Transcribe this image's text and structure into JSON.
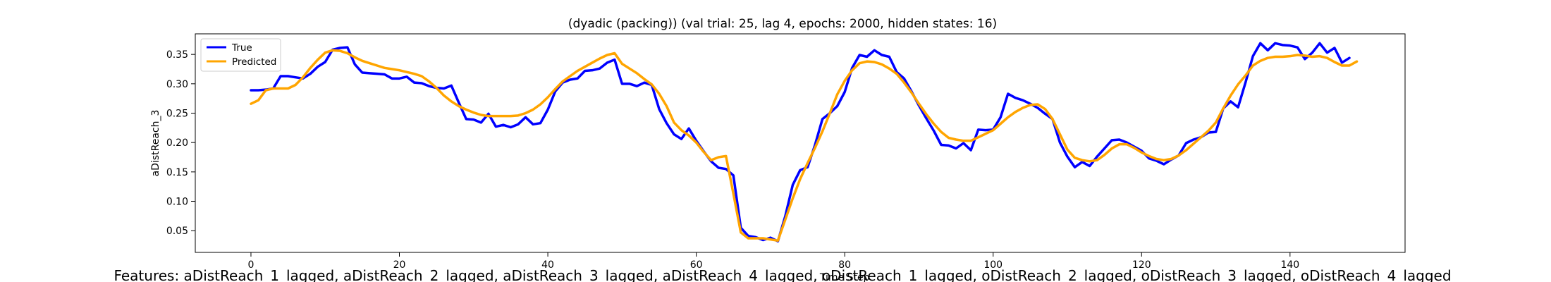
{
  "chart_data": {
    "type": "line",
    "title": "(dyadic (packing)) (val trial: 25, lag 4, epochs: 2000, hidden states: 16)",
    "xlabel": "Time Step",
    "ylabel": "aDistReach_3",
    "xlim": [
      -7.5,
      155.5
    ],
    "ylim": [
      0.013,
      0.385
    ],
    "xticks": [
      0,
      20,
      40,
      60,
      80,
      100,
      120,
      140
    ],
    "yticks": [
      0.05,
      0.1,
      0.15,
      0.2,
      0.25,
      0.3,
      0.35
    ],
    "ytick_labels": [
      "0.05",
      "0.10",
      "0.15",
      "0.20",
      "0.25",
      "0.30",
      "0.35"
    ],
    "grid": false,
    "legend_position": "upper-left",
    "colors": {
      "true": "#0000ff",
      "predicted": "#ffa500"
    },
    "x_start": 0,
    "series": [
      {
        "name": "True",
        "color": "#0000ff",
        "values": [
          0.289,
          0.289,
          0.29,
          0.292,
          0.313,
          0.313,
          0.311,
          0.309,
          0.317,
          0.329,
          0.337,
          0.358,
          0.361,
          0.362,
          0.333,
          0.319,
          0.318,
          0.317,
          0.316,
          0.309,
          0.309,
          0.312,
          0.302,
          0.301,
          0.296,
          0.293,
          0.292,
          0.297,
          0.268,
          0.24,
          0.239,
          0.234,
          0.249,
          0.227,
          0.23,
          0.226,
          0.231,
          0.243,
          0.231,
          0.233,
          0.256,
          0.287,
          0.302,
          0.307,
          0.309,
          0.322,
          0.323,
          0.326,
          0.336,
          0.341,
          0.3,
          0.3,
          0.296,
          0.302,
          0.298,
          0.257,
          0.233,
          0.214,
          0.206,
          0.224,
          0.203,
          0.185,
          0.168,
          0.157,
          0.155,
          0.144,
          0.055,
          0.041,
          0.039,
          0.034,
          0.038,
          0.032,
          0.075,
          0.128,
          0.153,
          0.158,
          0.196,
          0.24,
          0.25,
          0.262,
          0.286,
          0.327,
          0.349,
          0.346,
          0.357,
          0.349,
          0.346,
          0.32,
          0.309,
          0.287,
          0.263,
          0.241,
          0.22,
          0.196,
          0.195,
          0.19,
          0.199,
          0.187,
          0.222,
          0.221,
          0.222,
          0.243,
          0.283,
          0.276,
          0.272,
          0.266,
          0.259,
          0.249,
          0.24,
          0.2,
          0.176,
          0.158,
          0.167,
          0.16,
          0.176,
          0.19,
          0.204,
          0.205,
          0.2,
          0.193,
          0.186,
          0.173,
          0.169,
          0.163,
          0.171,
          0.178,
          0.199,
          0.205,
          0.209,
          0.217,
          0.218,
          0.258,
          0.27,
          0.26,
          0.302,
          0.347,
          0.369,
          0.357,
          0.369,
          0.366,
          0.365,
          0.362,
          0.342,
          0.353,
          0.369,
          0.353,
          0.361,
          0.336,
          0.344
        ]
      },
      {
        "name": "Predicted",
        "color": "#ffa500",
        "values": [
          0.266,
          0.272,
          0.289,
          0.292,
          0.292,
          0.292,
          0.298,
          0.311,
          0.327,
          0.341,
          0.353,
          0.357,
          0.356,
          0.352,
          0.345,
          0.339,
          0.335,
          0.331,
          0.327,
          0.325,
          0.323,
          0.32,
          0.317,
          0.313,
          0.304,
          0.293,
          0.28,
          0.27,
          0.262,
          0.256,
          0.251,
          0.247,
          0.245,
          0.245,
          0.245,
          0.245,
          0.246,
          0.25,
          0.256,
          0.265,
          0.277,
          0.291,
          0.304,
          0.313,
          0.322,
          0.329,
          0.336,
          0.343,
          0.349,
          0.352,
          0.334,
          0.326,
          0.318,
          0.308,
          0.299,
          0.283,
          0.262,
          0.234,
          0.221,
          0.212,
          0.2,
          0.184,
          0.17,
          0.175,
          0.177,
          0.113,
          0.047,
          0.037,
          0.037,
          0.037,
          0.035,
          0.033,
          0.069,
          0.105,
          0.138,
          0.165,
          0.191,
          0.219,
          0.25,
          0.282,
          0.305,
          0.323,
          0.335,
          0.338,
          0.337,
          0.333,
          0.326,
          0.317,
          0.302,
          0.285,
          0.266,
          0.248,
          0.232,
          0.218,
          0.208,
          0.205,
          0.203,
          0.203,
          0.209,
          0.215,
          0.221,
          0.232,
          0.243,
          0.252,
          0.259,
          0.264,
          0.265,
          0.257,
          0.24,
          0.214,
          0.188,
          0.174,
          0.17,
          0.168,
          0.17,
          0.179,
          0.19,
          0.197,
          0.197,
          0.191,
          0.183,
          0.177,
          0.172,
          0.17,
          0.172,
          0.178,
          0.187,
          0.198,
          0.209,
          0.22,
          0.234,
          0.258,
          0.28,
          0.299,
          0.314,
          0.331,
          0.339,
          0.344,
          0.346,
          0.346,
          0.347,
          0.349,
          0.348,
          0.346,
          0.347,
          0.344,
          0.337,
          0.331,
          0.331,
          0.338
        ]
      }
    ]
  },
  "footer_text": "Features: aDistReach_1_lagged, aDistReach_2_lagged, aDistReach_3_lagged, aDistReach_4_lagged, oDistReach_1_lagged, oDistReach_2_lagged, oDistReach_3_lagged, oDistReach_4_lagged"
}
